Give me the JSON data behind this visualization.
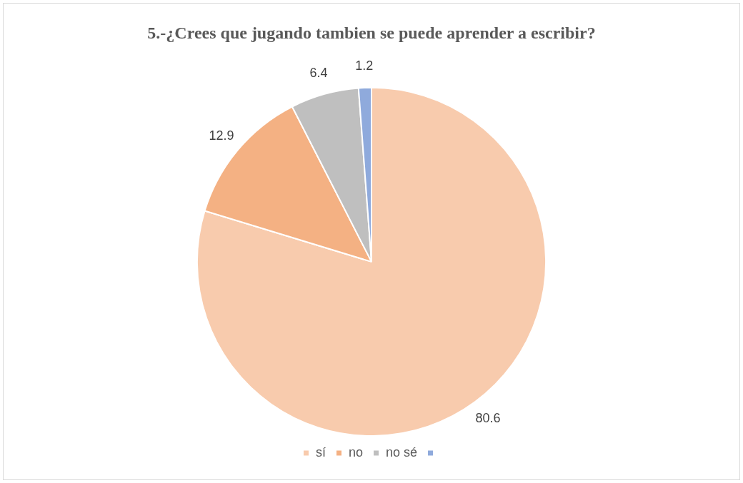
{
  "chart_data": {
    "type": "pie",
    "title": "5.-¿Crees que jugando tambien se puede aprender a escribir?",
    "categories": [
      "sí",
      "no",
      "no sé",
      null
    ],
    "values": [
      80.6,
      12.9,
      6.4,
      1.2
    ],
    "colors": [
      "#f8cbad",
      "#f4b183",
      "#bfbfbf",
      "#8faadc"
    ],
    "data_labels": true,
    "legend": "bottom"
  }
}
